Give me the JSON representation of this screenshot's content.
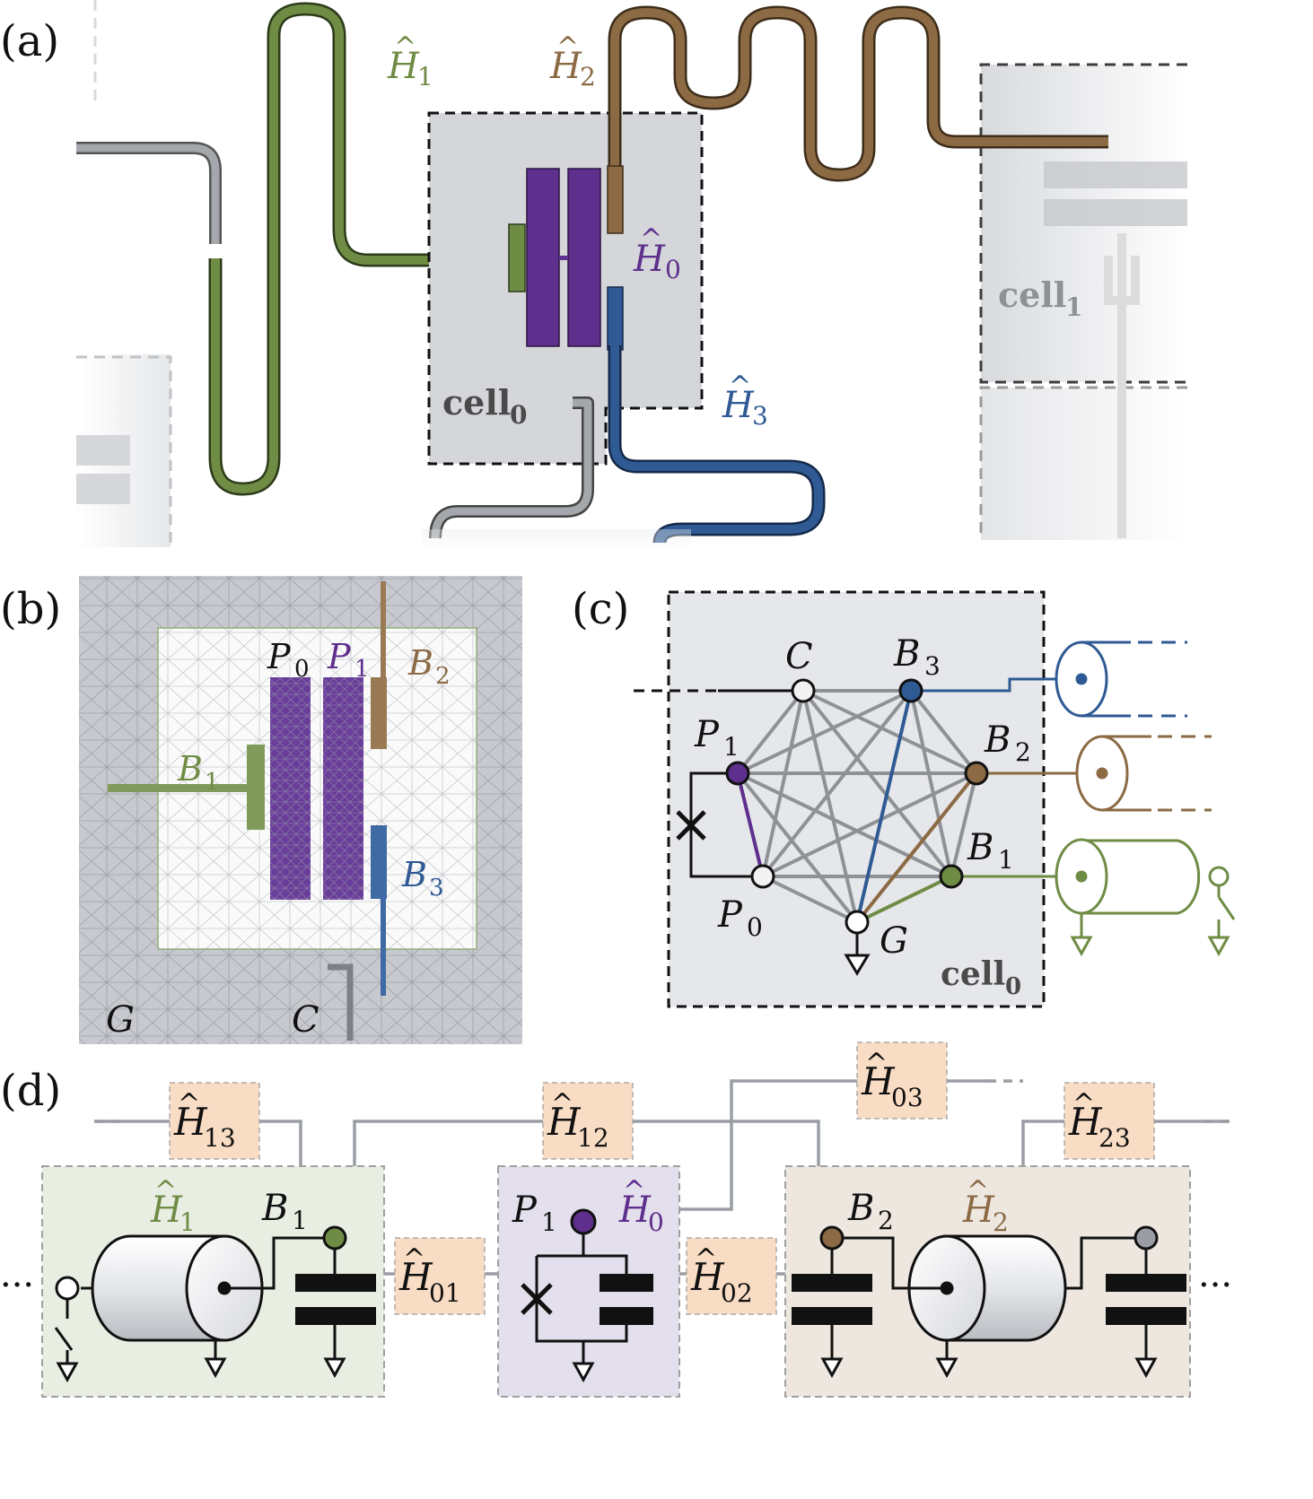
{
  "colors": {
    "purple": "#5e2f8c",
    "green": "#6f8c45",
    "brown": "#8b6a44",
    "blue": "#2f5a94",
    "gray": "#9a9ea4",
    "cellbg": "#d4d6da",
    "orange": "#f9dcc4",
    "boxGreen": "#e9eee3",
    "boxPurple": "#e4dfec",
    "boxBrown": "#ede7e0"
  },
  "panels": {
    "a": "(a)",
    "b": "(b)",
    "c": "(c)",
    "d": "(d)"
  },
  "a": {
    "H1": {
      "base": "H",
      "hat": "^",
      "sub": "1"
    },
    "H2": {
      "base": "H",
      "hat": "^",
      "sub": "2"
    },
    "H0": {
      "base": "H",
      "hat": "^",
      "sub": "0"
    },
    "H3": {
      "base": "H",
      "hat": "^",
      "sub": "3"
    },
    "cell0": {
      "base": "cell",
      "sub": "0"
    },
    "cell1": {
      "base": "cell",
      "sub": "1"
    }
  },
  "b": {
    "P0": {
      "base": "P",
      "sub": "0"
    },
    "P1": {
      "base": "P",
      "sub": "1"
    },
    "B1": {
      "base": "B",
      "sub": "1"
    },
    "B2": {
      "base": "B",
      "sub": "2"
    },
    "B3": {
      "base": "B",
      "sub": "3"
    },
    "G": "G",
    "C": "C"
  },
  "c": {
    "C": "C",
    "B3": {
      "base": "B",
      "sub": "3"
    },
    "B2": {
      "base": "B",
      "sub": "2"
    },
    "B1": {
      "base": "B",
      "sub": "1"
    },
    "P1": {
      "base": "P",
      "sub": "1"
    },
    "P0": {
      "base": "P",
      "sub": "0"
    },
    "G": "G",
    "cell0": {
      "base": "cell",
      "sub": "0"
    }
  },
  "d": {
    "H13": {
      "base": "H",
      "sub": "13"
    },
    "H12": {
      "base": "H",
      "sub": "12"
    },
    "H03": {
      "base": "H",
      "sub": "03"
    },
    "H23": {
      "base": "H",
      "sub": "23"
    },
    "H01": {
      "base": "H",
      "sub": "01"
    },
    "H02": {
      "base": "H",
      "sub": "02"
    },
    "H1": {
      "base": "H",
      "sub": "1"
    },
    "H0": {
      "base": "H",
      "sub": "0"
    },
    "H2": {
      "base": "H",
      "sub": "2"
    },
    "B1": {
      "base": "B",
      "sub": "1"
    },
    "P1": {
      "base": "P",
      "sub": "1"
    },
    "B2": {
      "base": "B",
      "sub": "2"
    },
    "ellipsis_left": "···",
    "ellipsis_right": "···"
  }
}
